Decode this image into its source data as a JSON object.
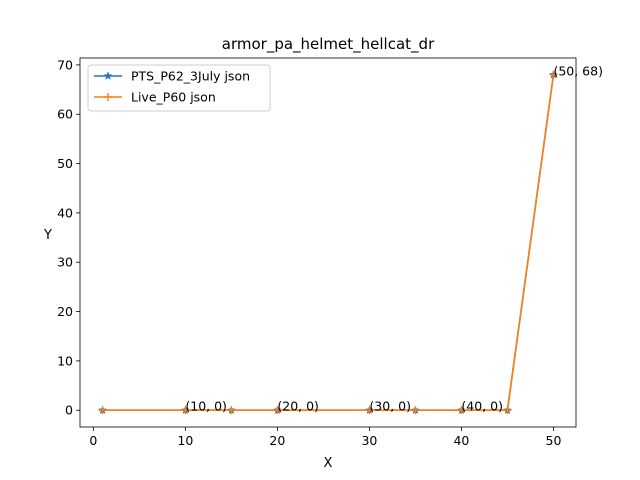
{
  "chart_data": {
    "type": "line",
    "title": "armor_pa_helmet_hellcat_dr",
    "xlabel": "X",
    "ylabel": "Y",
    "xlim": [
      -1.45,
      52.45
    ],
    "ylim": [
      -3.4,
      71.4
    ],
    "xticks": [
      0,
      10,
      20,
      30,
      40,
      50
    ],
    "yticks": [
      0,
      10,
      20,
      30,
      40,
      50,
      60,
      70
    ],
    "grid": false,
    "legend_position": "top-left",
    "series": [
      {
        "name": "PTS_P62_3July json",
        "color": "#1f77b4",
        "marker": "star",
        "x": [
          1,
          10,
          15,
          20,
          30,
          35,
          40,
          45,
          50
        ],
        "y": [
          0,
          0,
          0,
          0,
          0,
          0,
          0,
          0,
          68
        ]
      },
      {
        "name": "Live_P60 json",
        "color": "#ff7f0e",
        "marker": "plus",
        "x": [
          1,
          10,
          15,
          20,
          30,
          35,
          40,
          45,
          50
        ],
        "y": [
          0,
          0,
          0,
          0,
          0,
          0,
          0,
          0,
          68
        ]
      }
    ],
    "annotations": [
      {
        "text": "(10, 0)",
        "x": 10,
        "y": 0
      },
      {
        "text": "(20, 0)",
        "x": 20,
        "y": 0
      },
      {
        "text": "(30, 0)",
        "x": 30,
        "y": 0
      },
      {
        "text": "(40, 0)",
        "x": 40,
        "y": 0
      },
      {
        "text": "(50, 68)",
        "x": 50,
        "y": 68
      }
    ]
  }
}
